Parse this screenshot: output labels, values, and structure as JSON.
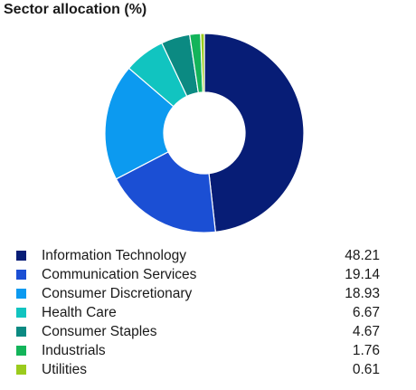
{
  "chart_data": {
    "type": "pie",
    "title": "Sector allocation (%)",
    "donut": true,
    "legend_position": "bottom",
    "slices": [
      {
        "label": "Information Technology",
        "value": 48.21,
        "display": "48.21",
        "color": "#071D76"
      },
      {
        "label": "Communication Services",
        "value": 19.14,
        "display": "19.14",
        "color": "#1B4FD4"
      },
      {
        "label": "Consumer Discretionary",
        "value": 18.93,
        "display": "18.93",
        "color": "#0C9AF0"
      },
      {
        "label": "Health Care",
        "value": 6.67,
        "display": "6.67",
        "color": "#11C4C0"
      },
      {
        "label": "Consumer Staples",
        "value": 4.67,
        "display": "4.67",
        "color": "#0B8A82"
      },
      {
        "label": "Industrials",
        "value": 1.76,
        "display": "1.76",
        "color": "#13B45A"
      },
      {
        "label": "Utilities",
        "value": 0.61,
        "display": "0.61",
        "color": "#9BCB1D"
      }
    ]
  }
}
